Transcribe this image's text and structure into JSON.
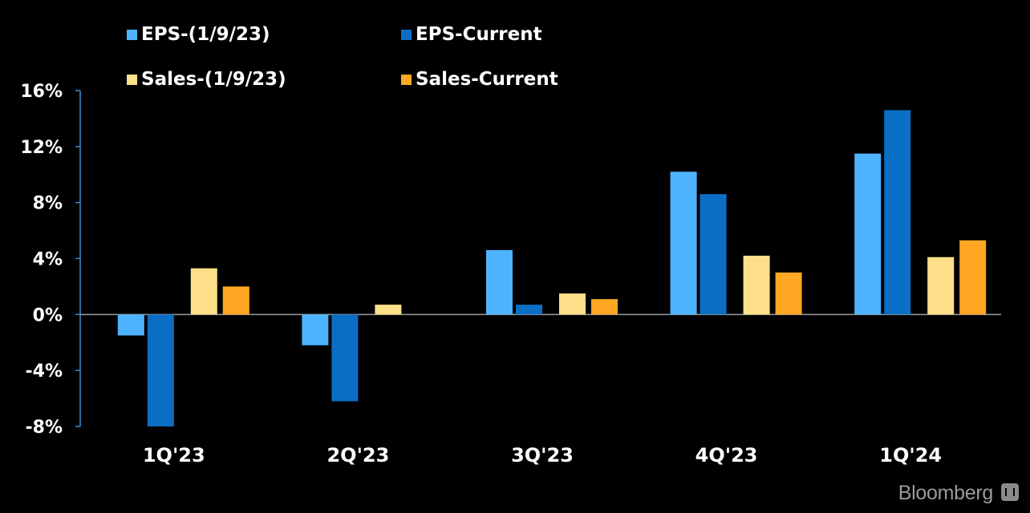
{
  "chart_data": {
    "type": "bar",
    "categories": [
      "1Q'23",
      "2Q'23",
      "3Q'23",
      "4Q'23",
      "1Q'24"
    ],
    "series": [
      {
        "name": "EPS-(1/9/23)",
        "color": "#4db3ff",
        "values": [
          -1.5,
          -2.2,
          4.6,
          10.2,
          11.5
        ]
      },
      {
        "name": "EPS-Current",
        "color": "#0a6fc4",
        "values": [
          -8.0,
          -6.2,
          0.7,
          8.6,
          14.6
        ]
      },
      {
        "name": "Sales-(1/9/23)",
        "color": "#ffe08a",
        "values": [
          3.3,
          0.7,
          1.5,
          4.2,
          4.1
        ]
      },
      {
        "name": "Sales-Current",
        "color": "#ffa722",
        "values": [
          2.0,
          null,
          1.1,
          3.0,
          5.3
        ]
      }
    ],
    "ylim": [
      -8,
      16
    ],
    "yticks": [
      "16%",
      "12%",
      "8%",
      "4%",
      "0%",
      "-4%",
      "-8%"
    ],
    "ytick_values": [
      16,
      12,
      8,
      4,
      0,
      -4,
      -8
    ],
    "xlabel": "",
    "ylabel": "",
    "legend_position": "top-left",
    "grid": false
  },
  "branding": {
    "text": "Bloomberg"
  }
}
